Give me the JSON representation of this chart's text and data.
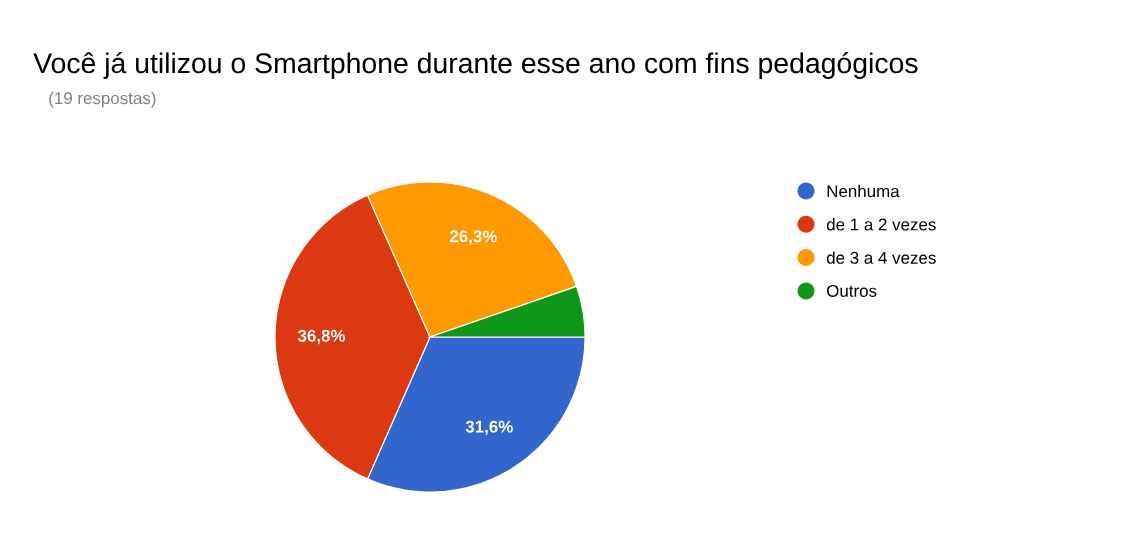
{
  "chart_data": {
    "type": "pie",
    "title": "Você já utilizou o Smartphone durante esse ano com fins pedagógicos",
    "subtitle": "(19 respostas)",
    "categories": [
      "Nenhuma",
      "de 1 a 2 vezes",
      "de 3 a 4 vezes",
      "Outros"
    ],
    "values": [
      31.6,
      36.8,
      26.3,
      5.3
    ],
    "colors": [
      "#3366cc",
      "#dc3912",
      "#ff9900",
      "#109618"
    ],
    "value_labels": [
      "31,6%",
      "36,8%",
      "26,3%",
      null
    ],
    "legend": "right"
  }
}
